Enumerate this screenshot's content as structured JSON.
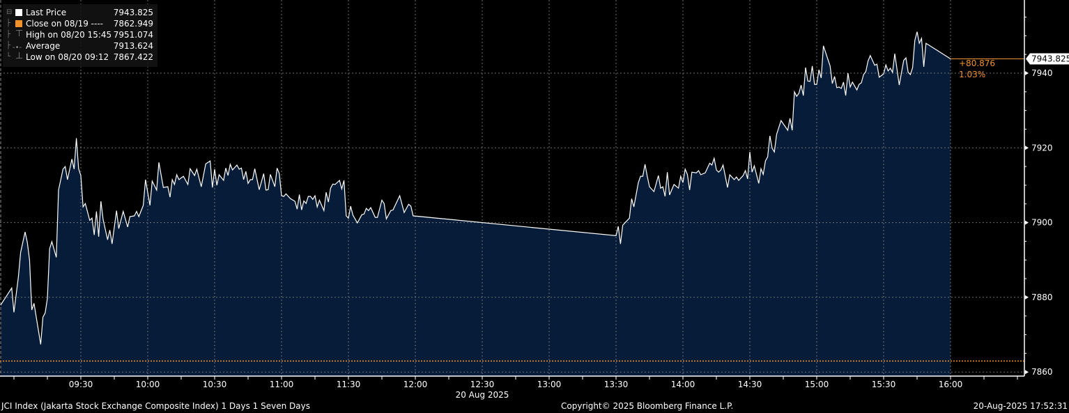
{
  "chart_data": {
    "type": "area",
    "x_range": [
      "08:54",
      "16:31"
    ],
    "ylim": [
      7856,
      7958
    ],
    "y_ticks": [
      7860,
      7880,
      7900,
      7920,
      7940
    ],
    "x_ticks": [
      "09:30",
      "10:00",
      "10:30",
      "11:00",
      "11:30",
      "12:00",
      "12:30",
      "13:00",
      "13:30",
      "14:00",
      "14:30",
      "15:00",
      "15:30",
      "16:00"
    ],
    "x_date_label": "20 Aug 2025",
    "grid": true,
    "y_axis_side": "right",
    "legend_placement": "top-left",
    "colors": {
      "line": "#ffffff",
      "fill": "#061c38",
      "close": "#f2922b",
      "grid": "#8a8a8a",
      "background": "#000000"
    },
    "close_value": 7862.949,
    "last_value": 7943.825,
    "last_label": "7943.825",
    "change": "+80.876",
    "change_pct": "1.03%",
    "legend": [
      {
        "label": "Last Price",
        "value": "7943.825",
        "swatch": "#ffffff",
        "icon": "square"
      },
      {
        "label": "Close on 08/19 ----",
        "value": "7862.949",
        "swatch": "#f2922b",
        "icon": "square"
      },
      {
        "label": "High on 08/20 15:45",
        "value": "7951.074",
        "icon": "high-marker"
      },
      {
        "label": "Average",
        "value": "7913.624",
        "icon": "average-marker"
      },
      {
        "label": "Low on 08/20 09:12",
        "value": "7867.422",
        "icon": "low-marker"
      }
    ],
    "series": [
      {
        "points": [
          [
            "08:54",
            7877.9
          ],
          [
            "08:59",
            7882.5
          ],
          [
            "09:00",
            7876.0
          ],
          [
            "09:02",
            7885.5
          ],
          [
            "09:03",
            7892.0
          ],
          [
            "09:05",
            7897.5
          ],
          [
            "09:06",
            7894.7
          ],
          [
            "09:07",
            7890.0
          ],
          [
            "09:08",
            7876.6
          ],
          [
            "09:09",
            7878.4
          ],
          [
            "09:12",
            7867.4
          ],
          [
            "09:13",
            7874.7
          ],
          [
            "09:14",
            7875.8
          ],
          [
            "09:15",
            7879.7
          ],
          [
            "09:16",
            7893.0
          ],
          [
            "09:17",
            7894.9
          ],
          [
            "09:19",
            7890.7
          ],
          [
            "09:20",
            7908.7
          ],
          [
            "09:22",
            7914.3
          ],
          [
            "09:23",
            7915.0
          ],
          [
            "09:24",
            7911.5
          ],
          [
            "09:26",
            7917.0
          ],
          [
            "09:27",
            7914.3
          ],
          [
            "09:28",
            7922.6
          ],
          [
            "09:29",
            7914.4
          ],
          [
            "09:30",
            7912.6
          ],
          [
            "09:31",
            7904.2
          ],
          [
            "09:32",
            7905.1
          ],
          [
            "09:34",
            7900.6
          ],
          [
            "09:35",
            7901.2
          ],
          [
            "09:36",
            7896.7
          ],
          [
            "09:37",
            7903.0
          ],
          [
            "09:38",
            7896.2
          ],
          [
            "09:39",
            7905.7
          ],
          [
            "09:40",
            7900.8
          ],
          [
            "09:42",
            7895.4
          ],
          [
            "09:43",
            7898.0
          ],
          [
            "09:44",
            7894.3
          ],
          [
            "09:46",
            7903.2
          ],
          [
            "09:47",
            7898.4
          ],
          [
            "09:49",
            7903.0
          ],
          [
            "09:51",
            7898.8
          ],
          [
            "09:52",
            7901.6
          ],
          [
            "09:54",
            7901.8
          ],
          [
            "09:55",
            7903.0
          ],
          [
            "09:56",
            7901.6
          ],
          [
            "09:58",
            7904.6
          ],
          [
            "09:59",
            7911.5
          ],
          [
            "10:01",
            7904.6
          ],
          [
            "10:02",
            7911.1
          ],
          [
            "10:04",
            7908.7
          ],
          [
            "10:05",
            7916.1
          ],
          [
            "10:07",
            7909.4
          ],
          [
            "10:09",
            7909.6
          ],
          [
            "10:10",
            7906.8
          ],
          [
            "10:11",
            7911.5
          ],
          [
            "10:12",
            7910.2
          ],
          [
            "10:13",
            7912.8
          ],
          [
            "10:14",
            7911.5
          ],
          [
            "10:16",
            7912.4
          ],
          [
            "10:18",
            7910.2
          ],
          [
            "10:19",
            7914.4
          ],
          [
            "10:21",
            7912.6
          ],
          [
            "10:22",
            7914.3
          ],
          [
            "10:24",
            7909.6
          ],
          [
            "10:26",
            7915.7
          ],
          [
            "10:28",
            7916.5
          ],
          [
            "10:29",
            7909.4
          ],
          [
            "10:30",
            7914.3
          ],
          [
            "10:31",
            7910.0
          ],
          [
            "10:32",
            7912.8
          ],
          [
            "10:34",
            7911.3
          ],
          [
            "10:35",
            7914.6
          ],
          [
            "10:36",
            7912.6
          ],
          [
            "10:37",
            7915.6
          ],
          [
            "10:38",
            7914.1
          ],
          [
            "10:40",
            7915.4
          ],
          [
            "10:41",
            7914.3
          ],
          [
            "10:42",
            7914.6
          ],
          [
            "10:43",
            7911.5
          ],
          [
            "10:44",
            7913.7
          ],
          [
            "10:45",
            7910.5
          ],
          [
            "10:46",
            7911.5
          ],
          [
            "10:47",
            7911.5
          ],
          [
            "10:48",
            7914.4
          ],
          [
            "10:50",
            7908.8
          ],
          [
            "10:52",
            7913.1
          ],
          [
            "10:53",
            7908.7
          ],
          [
            "10:54",
            7908.8
          ],
          [
            "10:55",
            7912.9
          ],
          [
            "10:57",
            7909.6
          ],
          [
            "10:58",
            7914.6
          ],
          [
            "10:59",
            7913.1
          ],
          [
            "11:00",
            7907.2
          ],
          [
            "11:01",
            7907.0
          ],
          [
            "11:02",
            7907.7
          ],
          [
            "11:04",
            7906.4
          ],
          [
            "11:06",
            7905.7
          ],
          [
            "11:07",
            7903.6
          ],
          [
            "11:08",
            7907.5
          ],
          [
            "11:09",
            7903.4
          ],
          [
            "11:10",
            7905.8
          ],
          [
            "11:11",
            7905.1
          ],
          [
            "11:12",
            7907.0
          ],
          [
            "11:13",
            7907.0
          ],
          [
            "11:14",
            7906.2
          ],
          [
            "11:15",
            7907.2
          ],
          [
            "11:16",
            7904.2
          ],
          [
            "11:17",
            7906.0
          ],
          [
            "11:19",
            7903.2
          ],
          [
            "11:20",
            7908.1
          ],
          [
            "11:21",
            7905.5
          ],
          [
            "11:22",
            7909.2
          ],
          [
            "11:23",
            7910.3
          ],
          [
            "11:24",
            7910.2
          ],
          [
            "11:26",
            7911.3
          ],
          [
            "11:27",
            7909.0
          ],
          [
            "11:28",
            7911.3
          ],
          [
            "11:29",
            7901.8
          ],
          [
            "11:30",
            7901.2
          ],
          [
            "11:31",
            7904.4
          ],
          [
            "11:32",
            7902.0
          ],
          [
            "11:34",
            7899.9
          ],
          [
            "11:36",
            7902.1
          ],
          [
            "11:37",
            7902.3
          ],
          [
            "11:38",
            7903.8
          ],
          [
            "11:39",
            7903.2
          ],
          [
            "11:40",
            7904.0
          ],
          [
            "11:42",
            7901.4
          ],
          [
            "11:43",
            7901.4
          ],
          [
            "11:45",
            7906.0
          ],
          [
            "11:46",
            7905.1
          ],
          [
            "11:47",
            7901.0
          ],
          [
            "11:49",
            7903.2
          ],
          [
            "11:50",
            7903.4
          ],
          [
            "11:53",
            7907.2
          ],
          [
            "11:55",
            7902.7
          ],
          [
            "11:57",
            7904.9
          ],
          [
            "11:58",
            7904.4
          ],
          [
            "11:59",
            7901.8
          ],
          [
            "13:30",
            7896.5
          ],
          [
            "13:31",
            7899.0
          ],
          [
            "13:32",
            7894.3
          ],
          [
            "13:33",
            7899.3
          ],
          [
            "13:36",
            7901.2
          ],
          [
            "13:37",
            7906.4
          ],
          [
            "13:38",
            7904.2
          ],
          [
            "13:40",
            7910.7
          ],
          [
            "13:41",
            7912.4
          ],
          [
            "13:42",
            7912.4
          ],
          [
            "13:43",
            7915.6
          ],
          [
            "13:44",
            7912.4
          ],
          [
            "13:45",
            7909.6
          ],
          [
            "13:47",
            7908.3
          ],
          [
            "13:49",
            7912.6
          ],
          [
            "13:50",
            7909.2
          ],
          [
            "13:51",
            7909.6
          ],
          [
            "13:52",
            7907.0
          ],
          [
            "13:53",
            7913.5
          ],
          [
            "13:54",
            7907.4
          ],
          [
            "13:56",
            7910.2
          ],
          [
            "13:58",
            7909.2
          ],
          [
            "13:59",
            7912.4
          ],
          [
            "14:00",
            7910.7
          ],
          [
            "14:01",
            7914.3
          ],
          [
            "14:02",
            7912.9
          ],
          [
            "14:03",
            7908.7
          ],
          [
            "14:04",
            7913.5
          ],
          [
            "14:06",
            7913.3
          ],
          [
            "14:07",
            7913.9
          ],
          [
            "14:08",
            7912.8
          ],
          [
            "14:10",
            7913.3
          ],
          [
            "14:12",
            7915.9
          ],
          [
            "14:13",
            7915.4
          ],
          [
            "14:14",
            7917.2
          ],
          [
            "14:15",
            7914.1
          ],
          [
            "14:16",
            7913.5
          ],
          [
            "14:17",
            7914.1
          ],
          [
            "14:18",
            7915.4
          ],
          [
            "14:20",
            7909.4
          ],
          [
            "14:21",
            7912.8
          ],
          [
            "14:23",
            7911.5
          ],
          [
            "14:24",
            7912.2
          ],
          [
            "14:25",
            7911.3
          ],
          [
            "14:27",
            7912.6
          ],
          [
            "14:28",
            7913.9
          ],
          [
            "14:29",
            7911.7
          ],
          [
            "14:30",
            7918.9
          ],
          [
            "14:31",
            7913.5
          ],
          [
            "14:32",
            7915.2
          ],
          [
            "14:34",
            7910.5
          ],
          [
            "14:35",
            7914.4
          ],
          [
            "14:36",
            7912.9
          ],
          [
            "14:37",
            7916.5
          ],
          [
            "14:38",
            7917.6
          ],
          [
            "14:39",
            7923.2
          ],
          [
            "14:40",
            7919.9
          ],
          [
            "14:41",
            7918.9
          ],
          [
            "14:42",
            7923.6
          ],
          [
            "14:44",
            7927.3
          ],
          [
            "14:47",
            7924.7
          ],
          [
            "14:48",
            7927.9
          ],
          [
            "14:49",
            7924.7
          ],
          [
            "14:50",
            7935.0
          ],
          [
            "14:51",
            7933.8
          ],
          [
            "14:52",
            7934.6
          ],
          [
            "14:53",
            7936.8
          ],
          [
            "14:54",
            7934.0
          ],
          [
            "14:55",
            7941.5
          ],
          [
            "14:56",
            7937.9
          ],
          [
            "14:57",
            7937.8
          ],
          [
            "14:58",
            7941.9
          ],
          [
            "14:59",
            7937.0
          ],
          [
            "15:00",
            7937.0
          ],
          [
            "15:01",
            7940.9
          ],
          [
            "15:02",
            7938.7
          ],
          [
            "15:03",
            7947.3
          ],
          [
            "15:06",
            7941.9
          ],
          [
            "15:07",
            7937.2
          ],
          [
            "15:08",
            7939.1
          ],
          [
            "15:09",
            7936.1
          ],
          [
            "15:10",
            7936.3
          ],
          [
            "15:11",
            7935.9
          ],
          [
            "15:12",
            7937.6
          ],
          [
            "15:13",
            7934.0
          ],
          [
            "15:14",
            7940.0
          ],
          [
            "15:15",
            7936.3
          ],
          [
            "15:16",
            7937.6
          ],
          [
            "15:18",
            7935.5
          ],
          [
            "15:19",
            7937.0
          ],
          [
            "15:20",
            7937.4
          ],
          [
            "15:21",
            7939.6
          ],
          [
            "15:22",
            7940.4
          ],
          [
            "15:23",
            7943.2
          ],
          [
            "15:24",
            7944.7
          ],
          [
            "15:26",
            7942.1
          ],
          [
            "15:27",
            7942.4
          ],
          [
            "15:28",
            7938.9
          ],
          [
            "15:30",
            7939.8
          ],
          [
            "15:31",
            7942.2
          ],
          [
            "15:32",
            7940.6
          ],
          [
            "15:33",
            7941.3
          ],
          [
            "15:34",
            7940.2
          ],
          [
            "15:35",
            7945.2
          ],
          [
            "15:37",
            7936.8
          ],
          [
            "15:39",
            7943.4
          ],
          [
            "15:40",
            7944.1
          ],
          [
            "15:41",
            7940.2
          ],
          [
            "15:42",
            7939.6
          ],
          [
            "15:43",
            7941.5
          ],
          [
            "15:44",
            7948.8
          ],
          [
            "15:45",
            7951.07
          ],
          [
            "15:46",
            7948.0
          ],
          [
            "15:47",
            7949.3
          ],
          [
            "15:48",
            7941.7
          ],
          [
            "15:49",
            7948.0
          ],
          [
            "16:00",
            7943.825
          ]
        ]
      }
    ]
  },
  "footer": {
    "security": "JCI Index (Jakarta Stock Exchange Composite Index) 1 Days 1 Seven Days",
    "copyright": "Copyright© 2025 Bloomberg Finance L.P.",
    "timestamp": "20-Aug-2025 17:52:31"
  }
}
